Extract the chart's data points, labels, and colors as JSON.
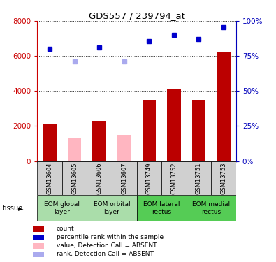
{
  "title": "GDS557 / 239794_at",
  "samples": [
    "GSM13604",
    "GSM13605",
    "GSM13606",
    "GSM13607",
    "GSM13749",
    "GSM13752",
    "GSM13751",
    "GSM13753"
  ],
  "bar_values": [
    2100,
    null,
    2300,
    null,
    3500,
    4150,
    3500,
    6200
  ],
  "bar_absent_values": [
    null,
    1350,
    null,
    1500,
    null,
    null,
    null,
    null
  ],
  "bar_color": "#BB0000",
  "bar_absent_color": "#FFB6C1",
  "rank_values": [
    6400,
    null,
    6500,
    null,
    6850,
    7200,
    6950,
    7650
  ],
  "rank_absent_values": [
    null,
    5700,
    null,
    5700,
    null,
    null,
    null,
    null
  ],
  "rank_color": "#0000CC",
  "rank_absent_color": "#AAAAEE",
  "ylim_left": [
    0,
    8000
  ],
  "ylim_right": [
    0,
    100
  ],
  "yticks_left": [
    0,
    2000,
    4000,
    6000,
    8000
  ],
  "yticks_right": [
    0,
    25,
    50,
    75,
    100
  ],
  "ytick_labels_right": [
    "0%",
    "25%",
    "50%",
    "75%",
    "100%"
  ],
  "left_axis_color": "#CC0000",
  "right_axis_color": "#0000BB",
  "tissue_groups": [
    {
      "name": "EOM global\nlayer",
      "span": [
        0,
        1
      ],
      "color": "#AADDAA"
    },
    {
      "name": "EOM orbital\nlayer",
      "span": [
        2,
        3
      ],
      "color": "#AADDAA"
    },
    {
      "name": "EOM lateral\nrectus",
      "span": [
        4,
        5
      ],
      "color": "#55CC55"
    },
    {
      "name": "EOM medial\nrectus",
      "span": [
        6,
        7
      ],
      "color": "#55CC55"
    }
  ],
  "legend_items": [
    {
      "color": "#BB0000",
      "label": "count"
    },
    {
      "color": "#0000CC",
      "label": "percentile rank within the sample"
    },
    {
      "color": "#FFB6C1",
      "label": "value, Detection Call = ABSENT"
    },
    {
      "color": "#AAAAEE",
      "label": "rank, Detection Call = ABSENT"
    }
  ]
}
